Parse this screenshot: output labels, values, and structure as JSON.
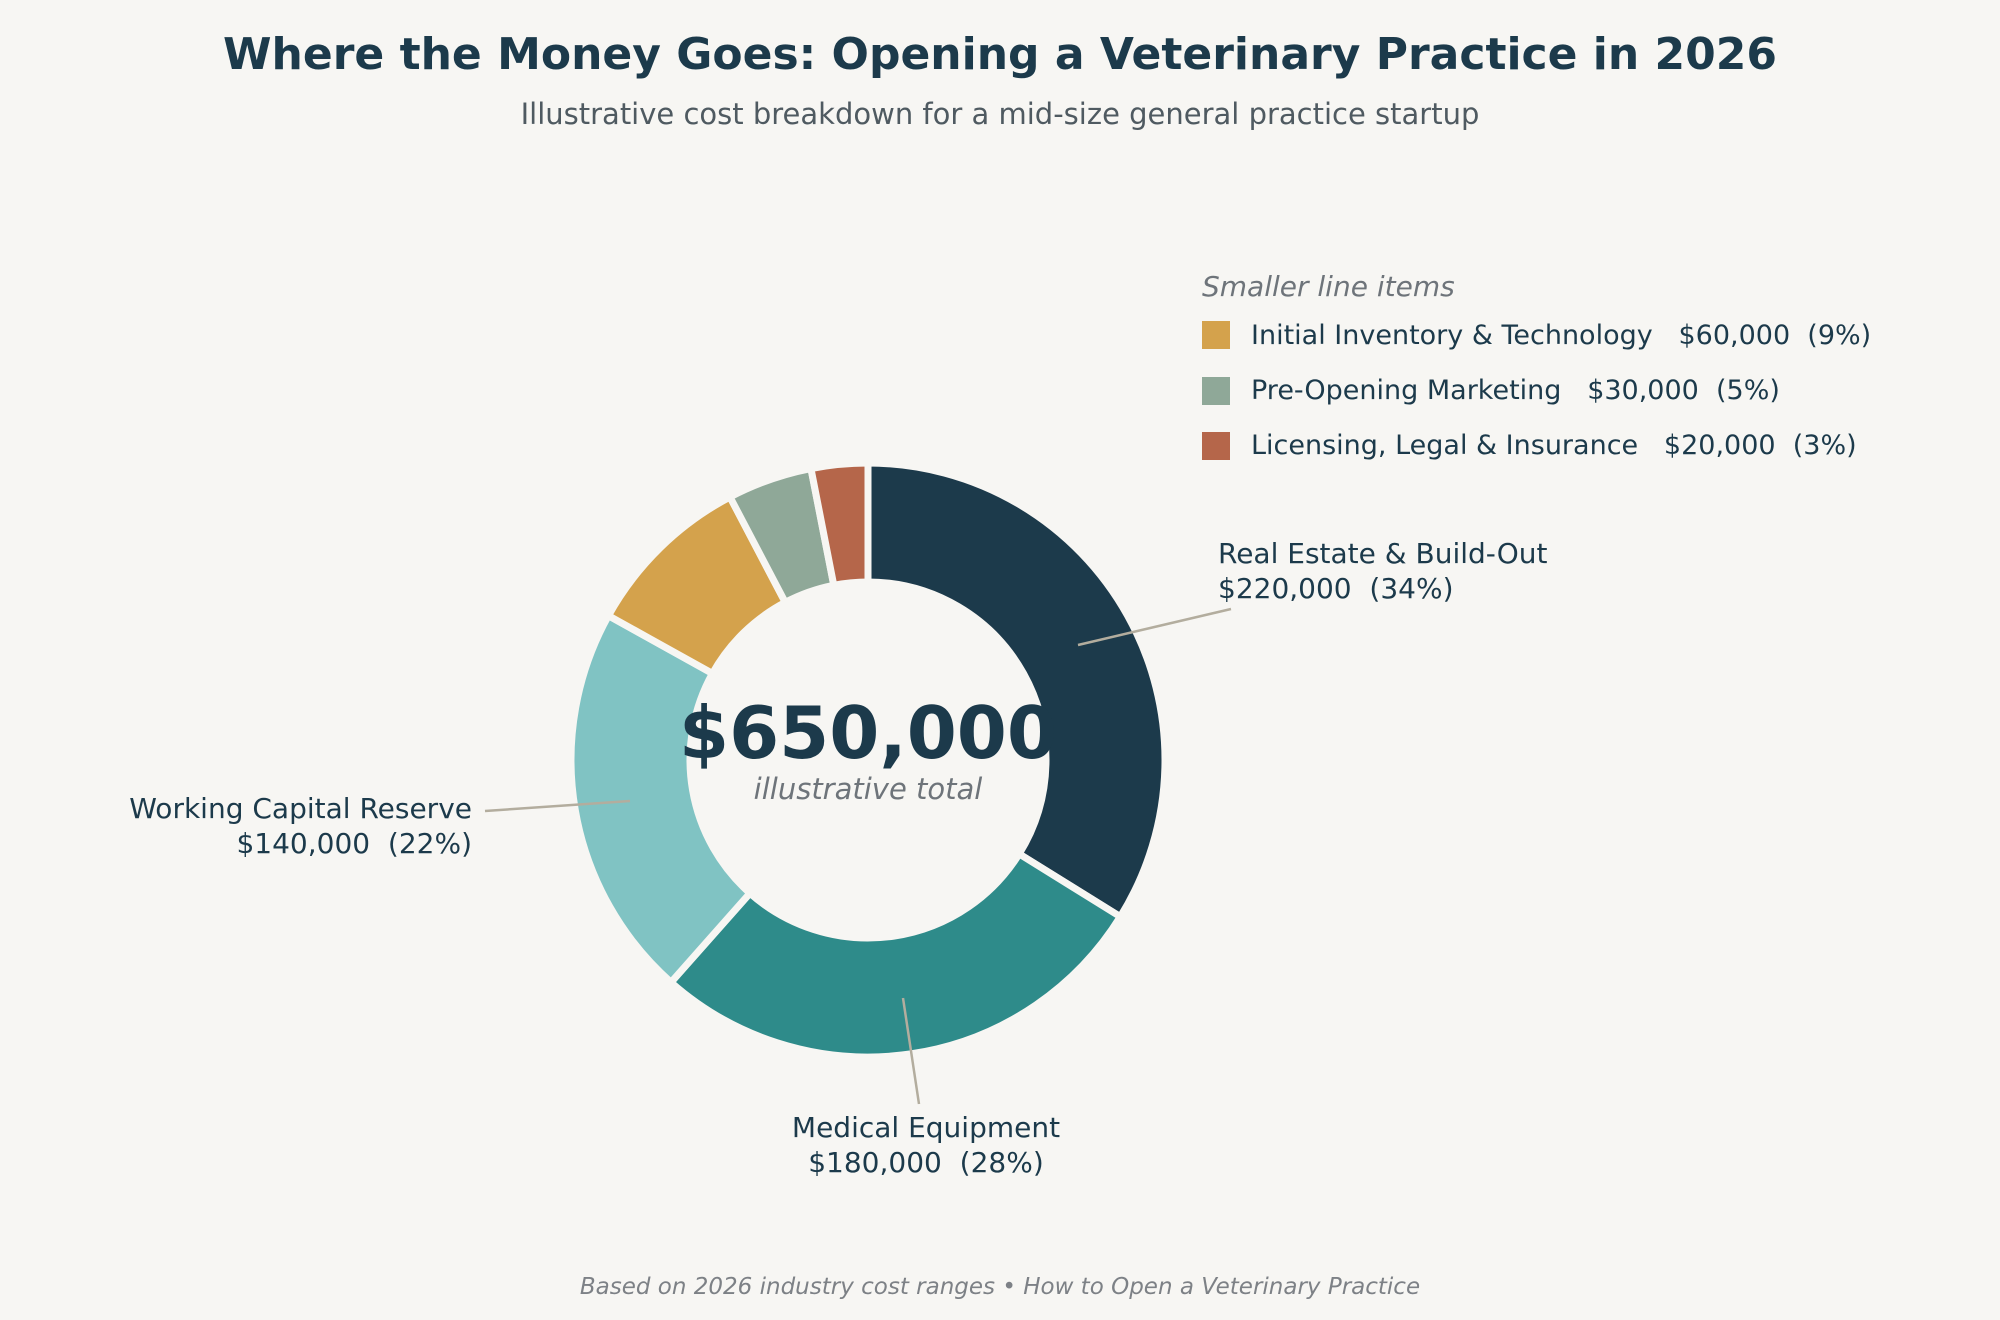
{
  "chart_data": {
    "type": "pie",
    "title": "Where the Money Goes: Opening a Veterinary Practice in 2026",
    "subtitle": "Illustrative cost breakdown for a mid-size general practice startup",
    "center_total": "$650,000",
    "center_label": "illustrative total",
    "slices": [
      {
        "label": "Real Estate & Build-Out",
        "value": 220000,
        "value_label": "$220,000",
        "percent_label": "(34%)",
        "color": "#1c3a4b"
      },
      {
        "label": "Medical Equipment",
        "value": 180000,
        "value_label": "$180,000",
        "percent_label": "(28%)",
        "color": "#2e8b8a"
      },
      {
        "label": "Working Capital Reserve",
        "value": 140000,
        "value_label": "$140,000",
        "percent_label": "(22%)",
        "color": "#80c3c3"
      },
      {
        "label": "Initial Inventory & Technology",
        "value": 60000,
        "value_label": "$60,000",
        "percent_label": "(9%)",
        "color": "#d4a24c"
      },
      {
        "label": "Pre-Opening Marketing",
        "value": 30000,
        "value_label": "$30,000",
        "percent_label": "(5%)",
        "color": "#8fa898"
      },
      {
        "label": "Licensing, Legal & Insurance",
        "value": 20000,
        "value_label": "$20,000",
        "percent_label": "(3%)",
        "color": "#b5664a"
      }
    ],
    "legend": {
      "title": "Smaller line items",
      "placement": "top-right",
      "items": [
        {
          "label": "Initial Inventory & Technology",
          "amount": "$60,000",
          "percent": "(9%)",
          "color": "#d4a24c"
        },
        {
          "label": "Pre-Opening Marketing",
          "amount": "$30,000",
          "percent": "(5%)",
          "color": "#8fa898"
        },
        {
          "label": "Licensing, Legal & Insurance",
          "amount": "$20,000",
          "percent": "(3%)",
          "color": "#b5664a"
        }
      ]
    },
    "footer": "Based on 2026 industry cost ranges  •  How to Open a Veterinary Practice"
  }
}
